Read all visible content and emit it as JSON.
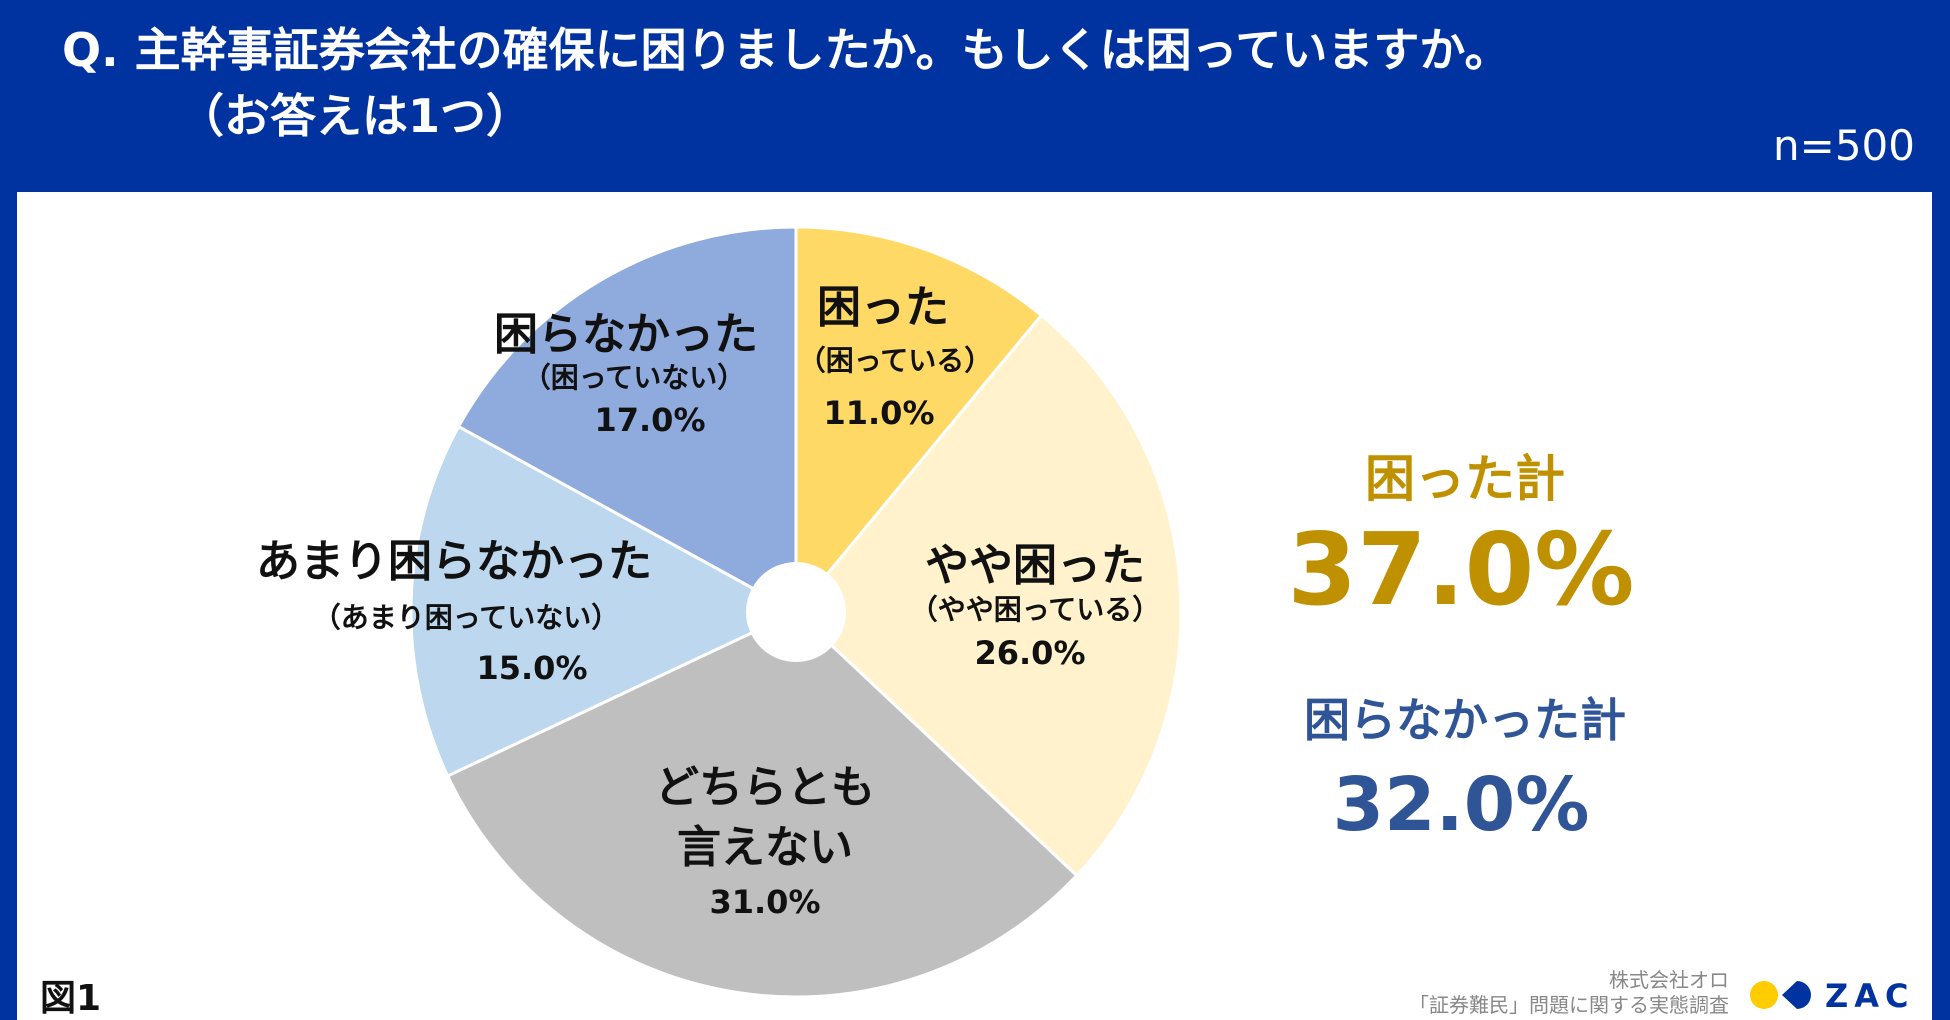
{
  "header": {
    "title_line1": "Q.  主幹事証券会社の確保に困りましたか。もしくは困っていますか。",
    "title_line2": "（お答えは1つ）",
    "sample_size": "n=500"
  },
  "chart_data": {
    "type": "pie",
    "donut_hole": true,
    "start": "top",
    "direction": "clockwise",
    "slices": [
      {
        "label": "困った",
        "sublabel": "（困っている）",
        "value": 11.0,
        "value_label": "11.0%",
        "color": "#FFD966"
      },
      {
        "label": "やや困った",
        "sublabel": "（やや困っている）",
        "value": 26.0,
        "value_label": "26.0%",
        "color": "#FFF2CC"
      },
      {
        "label": "どちらとも",
        "label2": "言えない",
        "value": 31.0,
        "value_label": "31.0%",
        "color": "#BFBFBF"
      },
      {
        "label": "あまり困らなかった",
        "sublabel": "（あまり困っていない）",
        "value": 15.0,
        "value_label": "15.0%",
        "color": "#BDD7EE"
      },
      {
        "label": "困らなかった",
        "sublabel": "（困っていない）",
        "value": 17.0,
        "value_label": "17.0%",
        "color": "#8FAADC"
      }
    ],
    "totals": [
      {
        "label": "困った計",
        "value_label": "37.0%",
        "value": 37.0,
        "color": "#BF9000"
      },
      {
        "label": "困らなかった計",
        "value_label": "32.0%",
        "value": 32.0,
        "color": "#2F5597"
      }
    ]
  },
  "footer": {
    "figure_label": "図1",
    "source_line1": "株式会社オロ",
    "source_line2": "「証券難民」問題に関する実態調査",
    "logo_text": "ZAC",
    "logo_colors": [
      "#FFCC00",
      "#0033a0"
    ]
  }
}
